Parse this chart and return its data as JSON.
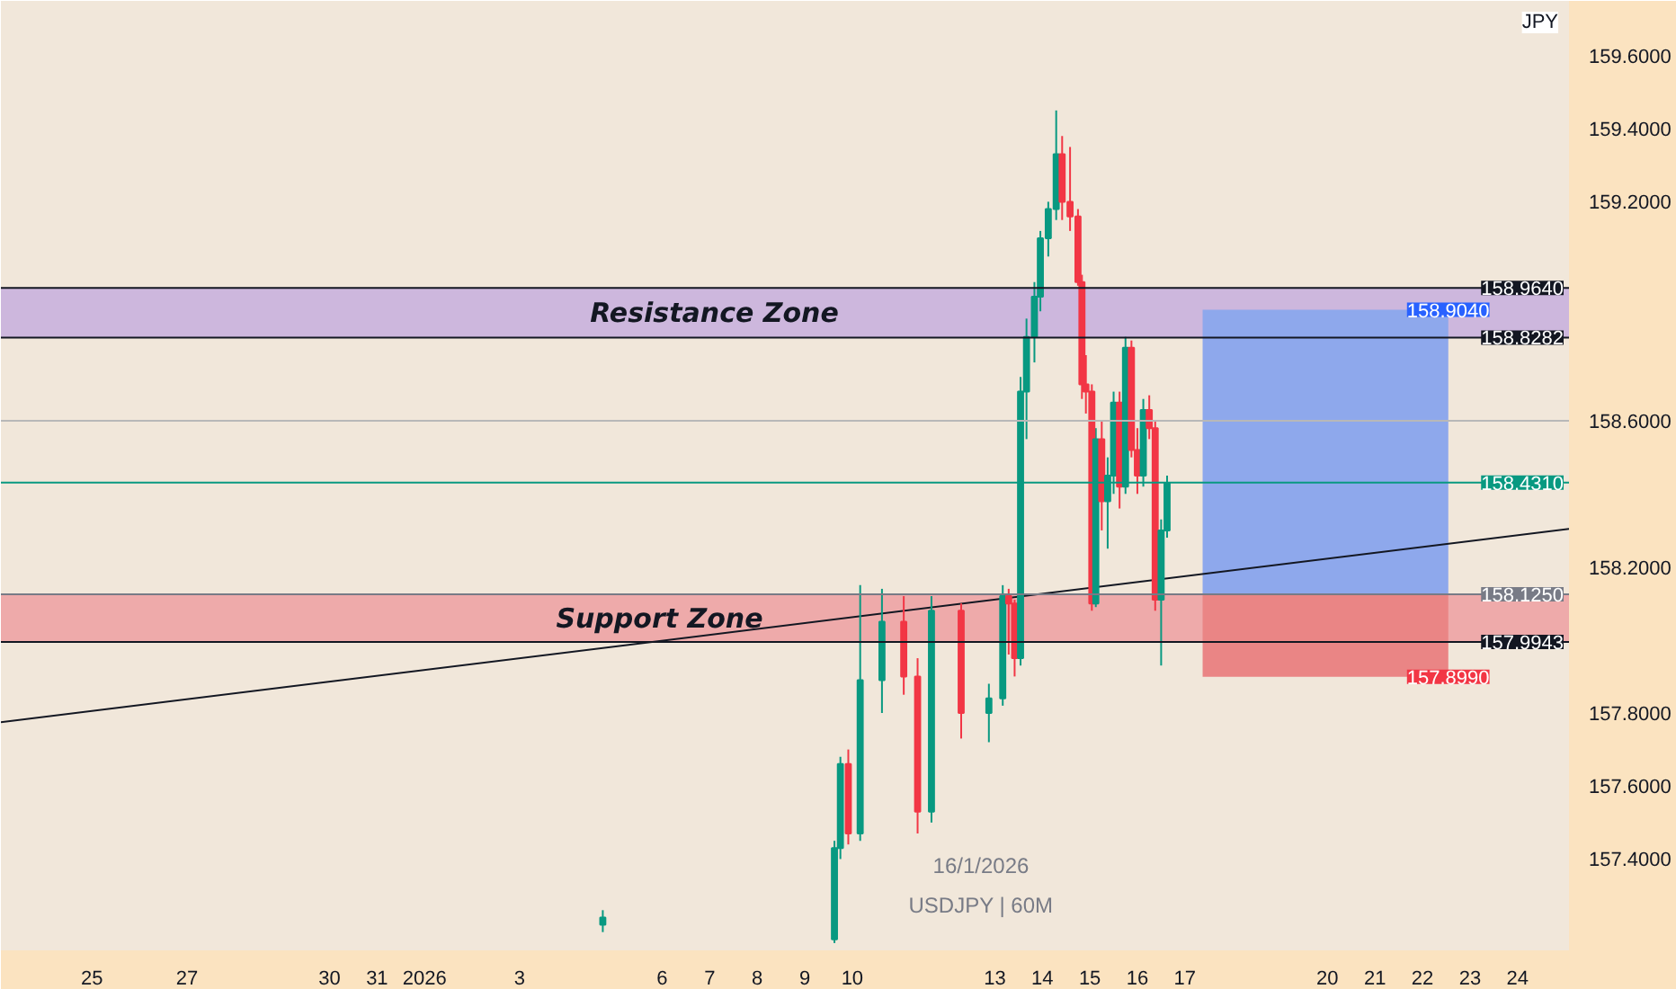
{
  "chart_data": {
    "type": "candlestick",
    "ylabel": "JPY",
    "x": [
      "2026-01-04T18:00",
      "2026-01-09T15:00",
      "2026-01-09T18:00",
      "2026-01-09T22:00",
      "2026-01-10T04:00",
      "2026-01-10T15:00",
      "2026-01-11T02:00",
      "2026-01-11T09:00",
      "2026-01-11T16:00",
      "2026-01-12T07:00",
      "2026-01-12T21:00",
      "2026-01-13T04:00",
      "2026-01-13T07:00",
      "2026-01-13T10:00",
      "2026-01-13T13:00",
      "2026-01-13T16:00",
      "2026-01-13T20:00",
      "2026-01-13T23:00",
      "2026-01-14T03:00",
      "2026-01-14T07:00",
      "2026-01-14T10:00",
      "2026-01-14T14:00",
      "2026-01-14T18:00",
      "2026-01-14T20:00",
      "2026-01-14T22:00",
      "2026-01-15T01:00",
      "2026-01-15T03:00",
      "2026-01-15T06:00",
      "2026-01-15T09:00",
      "2026-01-15T12:00",
      "2026-01-15T15:00",
      "2026-01-15T18:00",
      "2026-01-15T21:00",
      "2026-01-16T00:00",
      "2026-01-16T03:00",
      "2026-01-16T06:00",
      "2026-01-16T09:00",
      "2026-01-16T12:00",
      "2026-01-16T15:00"
    ],
    "ohlc": [
      [
        157.22,
        157.26,
        157.2,
        157.24
      ],
      [
        157.18,
        157.45,
        157.17,
        157.43
      ],
      [
        157.43,
        157.68,
        157.4,
        157.66
      ],
      [
        157.66,
        157.7,
        157.44,
        157.47
      ],
      [
        157.47,
        158.15,
        157.45,
        157.89
      ],
      [
        157.89,
        158.14,
        157.8,
        158.05
      ],
      [
        158.05,
        158.12,
        157.85,
        157.9
      ],
      [
        157.9,
        157.95,
        157.47,
        157.53
      ],
      [
        157.53,
        158.12,
        157.5,
        158.08
      ],
      [
        158.08,
        158.1,
        157.73,
        157.8
      ],
      [
        157.8,
        157.88,
        157.72,
        157.84
      ],
      [
        157.84,
        158.15,
        157.82,
        158.12
      ],
      [
        158.12,
        158.14,
        157.96,
        158.1
      ],
      [
        158.1,
        158.11,
        157.9,
        157.95
      ],
      [
        157.95,
        158.72,
        157.93,
        158.68
      ],
      [
        158.68,
        158.88,
        158.55,
        158.83
      ],
      [
        158.83,
        158.98,
        158.76,
        158.94
      ],
      [
        158.94,
        159.12,
        158.9,
        159.1
      ],
      [
        159.1,
        159.2,
        159.05,
        159.18
      ],
      [
        159.18,
        159.45,
        159.15,
        159.33
      ],
      [
        159.33,
        159.38,
        159.15,
        159.2
      ],
      [
        159.2,
        159.35,
        159.12,
        159.16
      ],
      [
        159.16,
        159.18,
        158.97,
        158.98
      ],
      [
        158.98,
        159.0,
        158.66,
        158.7
      ],
      [
        158.7,
        158.78,
        158.62,
        158.68
      ],
      [
        158.68,
        158.7,
        158.08,
        158.1
      ],
      [
        158.1,
        158.58,
        158.09,
        158.55
      ],
      [
        158.55,
        158.6,
        158.3,
        158.38
      ],
      [
        158.38,
        158.5,
        158.25,
        158.45
      ],
      [
        158.45,
        158.68,
        158.4,
        158.65
      ],
      [
        158.65,
        158.68,
        158.36,
        158.42
      ],
      [
        158.42,
        158.83,
        158.4,
        158.8
      ],
      [
        158.8,
        158.82,
        158.5,
        158.52
      ],
      [
        158.52,
        158.58,
        158.4,
        158.45
      ],
      [
        158.45,
        158.66,
        158.42,
        158.63
      ],
      [
        158.63,
        158.67,
        158.55,
        158.58
      ],
      [
        158.58,
        158.6,
        158.08,
        158.11
      ],
      [
        158.11,
        158.33,
        157.93,
        158.3
      ],
      [
        158.3,
        158.45,
        158.28,
        158.43
      ]
    ],
    "series": [
      {
        "type": "bar",
        "x": [
          "2026-01-19T23:00"
        ],
        "base": [
          158.125
        ],
        "values": [
          0.779
        ],
        "color": "#8ea8ec"
      },
      {
        "type": "bar",
        "x": [
          "2026-01-19T23:00"
        ],
        "base": [
          157.899
        ],
        "values": [
          0.226
        ],
        "color": "#ea8585"
      },
      {
        "type": "line",
        "x": [
          "2025-12-23T02:00",
          "2026-01-25T02:00"
        ],
        "values": [
          157.775,
          158.304
        ],
        "color": "#131722"
      }
    ],
    "xlim": [
      "2025-12-23T02:00",
      "2026-01-25T02:00"
    ],
    "ylim": [
      157.15,
      159.75
    ],
    "xticks": [
      {
        "value": "2025-12-25",
        "label": "25"
      },
      {
        "value": "2025-12-27",
        "label": "27"
      },
      {
        "value": "2025-12-30",
        "label": "30"
      },
      {
        "value": "2025-12-31",
        "label": "31"
      },
      {
        "value": "2026-01-01",
        "label": "2026"
      },
      {
        "value": "2026-01-03",
        "label": "3"
      },
      {
        "value": "2026-01-06",
        "label": "6"
      },
      {
        "value": "2026-01-07",
        "label": "7"
      },
      {
        "value": "2026-01-08",
        "label": "8"
      },
      {
        "value": "2026-01-09",
        "label": "9"
      },
      {
        "value": "2026-01-10",
        "label": "10"
      },
      {
        "value": "2026-01-13",
        "label": "13"
      },
      {
        "value": "2026-01-14",
        "label": "14"
      },
      {
        "value": "2026-01-15",
        "label": "15"
      },
      {
        "value": "2026-01-16",
        "label": "16"
      },
      {
        "value": "2026-01-17",
        "label": "17"
      },
      {
        "value": "2026-01-20",
        "label": "20"
      },
      {
        "value": "2026-01-21",
        "label": "21"
      },
      {
        "value": "2026-01-22",
        "label": "22"
      },
      {
        "value": "2026-01-23",
        "label": "23"
      },
      {
        "value": "2026-01-24",
        "label": "24"
      }
    ],
    "yticks": [
      {
        "value": 157.4,
        "label": "157.4000"
      },
      {
        "value": 157.6,
        "label": "157.6000"
      },
      {
        "value": 157.8,
        "label": "157.8000"
      },
      {
        "value": 158.2,
        "label": "158.2000"
      },
      {
        "value": 158.6,
        "label": "158.6000"
      },
      {
        "value": 159.2,
        "label": "159.2000"
      },
      {
        "value": 159.4,
        "label": "159.4000"
      },
      {
        "value": 159.6,
        "label": "159.6000"
      }
    ],
    "bands": [
      {
        "axis": "y",
        "from": 158.8282,
        "to": 158.964,
        "label": "Resistance Zone",
        "color": "#cdb7dd"
      },
      {
        "axis": "y",
        "from": 157.9943,
        "to": 158.125,
        "label": "Support Zone",
        "color": "#eeaaaa"
      }
    ],
    "ref_lines": [
      {
        "axis": "y",
        "value": 158.964,
        "label": "158.9640",
        "color": "#131722"
      },
      {
        "axis": "y",
        "value": 158.8282,
        "label": "158.8282",
        "color": "#131722"
      },
      {
        "axis": "y",
        "value": 158.431,
        "label": "158.4310",
        "color": "#089981"
      },
      {
        "axis": "y",
        "value": 158.125,
        "label": "158.1250",
        "color": "#787b86"
      },
      {
        "axis": "y",
        "value": 157.9943,
        "label": "157.9943",
        "color": "#131722"
      },
      {
        "axis": "y",
        "value": 158.6,
        "color": "#b8b8b8"
      }
    ],
    "annotations": [
      {
        "text": "158.9040",
        "x": "2026-01-22T13:00",
        "y": 158.904
      },
      {
        "text": "157.8990",
        "x": "2026-01-22T13:00",
        "y": 157.899
      },
      "16/1/2026",
      "USDJPY | 60M"
    ],
    "grid": false
  }
}
